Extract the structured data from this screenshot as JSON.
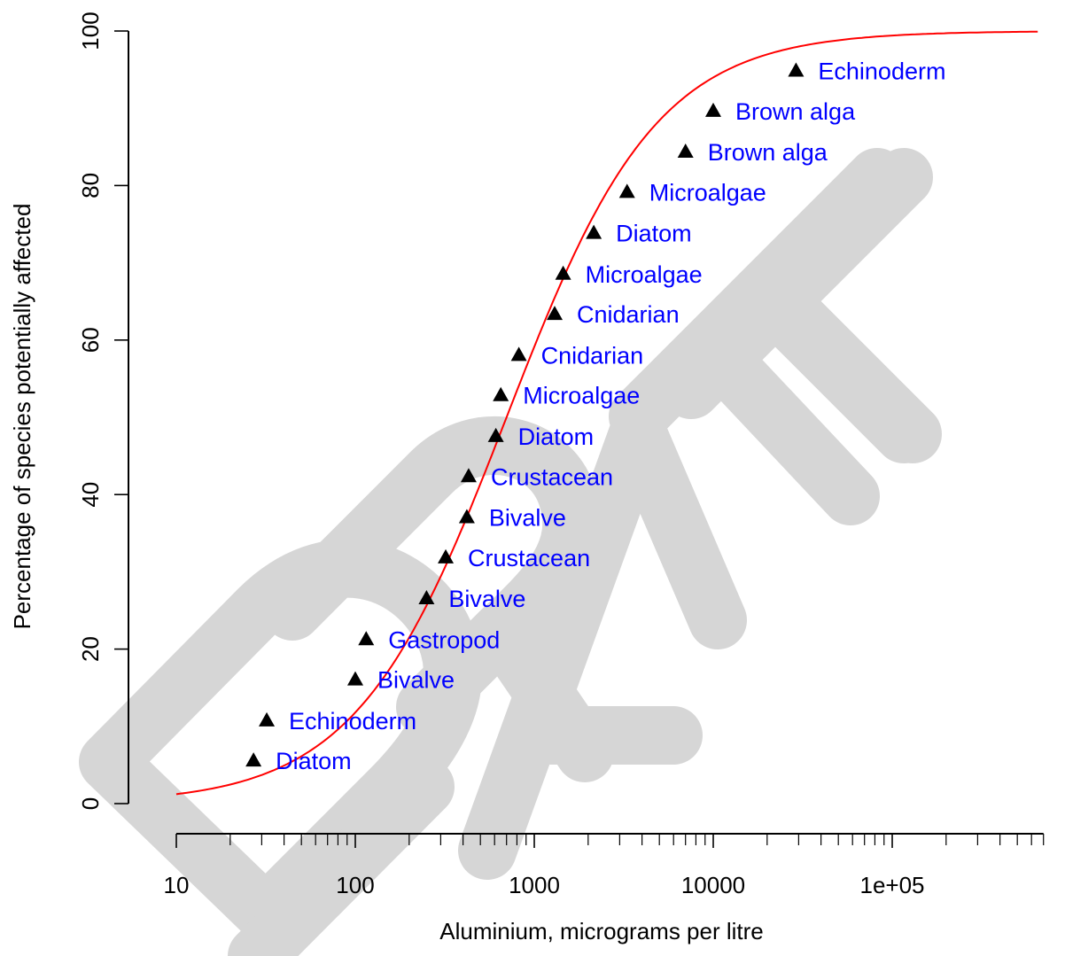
{
  "chart_data": {
    "type": "scatter",
    "title": "",
    "xlabel": "Aluminium, micrograms per litre",
    "ylabel": "Percentage of species potentially affected",
    "x_scale": "log10",
    "xlim": [
      10,
      700000
    ],
    "ylim": [
      0,
      100
    ],
    "x_ticks": [
      10,
      100,
      1000,
      10000,
      100000
    ],
    "x_tick_labels": [
      "10",
      "100",
      "1000",
      "10000",
      "1e+05"
    ],
    "y_ticks": [
      0,
      20,
      40,
      60,
      80,
      100
    ],
    "y_tick_labels": [
      "0",
      "20",
      "40",
      "60",
      "80",
      "100"
    ],
    "grid": false,
    "marker": "filled-triangle",
    "marker_color": "#000000",
    "label_color": "#0000ff",
    "curve_color": "#ff0000",
    "watermark_color": "#d6d6d6",
    "watermark": "DRAFT",
    "points": [
      {
        "x": 27,
        "y": 5.6,
        "label": "Diatom"
      },
      {
        "x": 32,
        "y": 10.8,
        "label": "Echinoderm"
      },
      {
        "x": 100,
        "y": 16.1,
        "label": "Bivalve"
      },
      {
        "x": 115,
        "y": 21.3,
        "label": "Gastropod"
      },
      {
        "x": 250,
        "y": 26.6,
        "label": "Bivalve"
      },
      {
        "x": 320,
        "y": 31.9,
        "label": "Crustacean"
      },
      {
        "x": 420,
        "y": 37.1,
        "label": "Bivalve"
      },
      {
        "x": 430,
        "y": 42.4,
        "label": "Crustacean"
      },
      {
        "x": 610,
        "y": 47.6,
        "label": "Diatom"
      },
      {
        "x": 650,
        "y": 52.9,
        "label": "Microalgae"
      },
      {
        "x": 820,
        "y": 58.1,
        "label": "Cnidarian"
      },
      {
        "x": 1300,
        "y": 63.4,
        "label": "Cnidarian"
      },
      {
        "x": 1450,
        "y": 68.6,
        "label": "Microalgae"
      },
      {
        "x": 2150,
        "y": 73.9,
        "label": "Diatom"
      },
      {
        "x": 3300,
        "y": 79.2,
        "label": "Microalgae"
      },
      {
        "x": 7000,
        "y": 84.4,
        "label": "Brown alga"
      },
      {
        "x": 10000,
        "y": 89.7,
        "label": "Brown alga"
      },
      {
        "x": 29000,
        "y": 94.9,
        "label": "Echinoderm"
      }
    ],
    "fitted_curve": {
      "model": "log-logistic",
      "median_x": 700,
      "log10_scale": 0.42,
      "x_range": [
        10,
        650000
      ]
    }
  }
}
